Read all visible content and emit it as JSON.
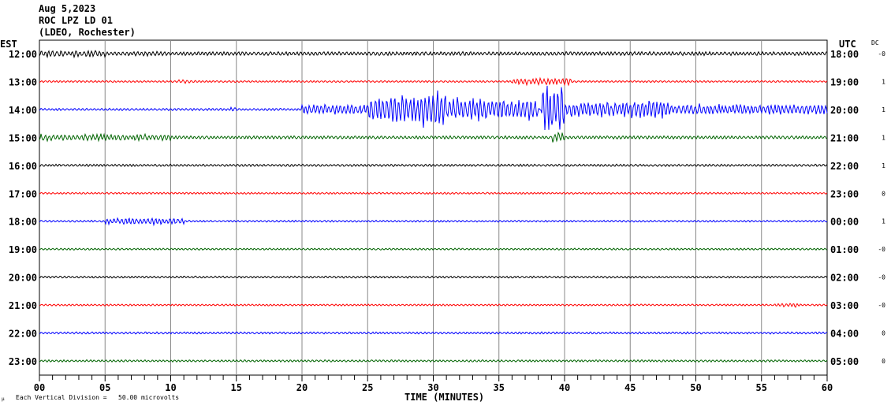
{
  "header": {
    "date": "Aug 5,2023",
    "station": "ROC LPZ LD 01",
    "network": "(LDEO, Rochester)"
  },
  "chart_data": {
    "type": "line",
    "title": "Aug 5,2023 ROC LPZ LD 01 (LDEO, Rochester)",
    "xlabel": "TIME (MINUTES)",
    "xlim": [
      0,
      60
    ],
    "x_ticks": [
      "00",
      "05",
      "10",
      "15",
      "20",
      "25",
      "30",
      "35",
      "40",
      "45",
      "50",
      "55",
      "60"
    ],
    "left_axis_title": "EST",
    "right_axis_title": "UTC",
    "dc_title": "DC",
    "scale_note": "Each Vertical Division =   50.00 microvolts",
    "corner_mark": "µ",
    "colors": [
      "#000000",
      "#ff0000",
      "#0000ff",
      "#006400"
    ],
    "rows": [
      {
        "est": "12:00",
        "utc": "18:00",
        "dc": "-0",
        "noise": 2.5,
        "events": [
          [
            0,
            5,
            5
          ],
          [
            7,
            9,
            4
          ]
        ]
      },
      {
        "est": "13:00",
        "utc": "19:00",
        "dc": "1",
        "noise": 1.2,
        "events": [
          [
            10.5,
            12,
            2.5
          ],
          [
            36,
            40.5,
            5
          ]
        ]
      },
      {
        "est": "14:00",
        "utc": "20:00",
        "dc": "1",
        "noise": 1.5,
        "events": [
          [
            14.5,
            15,
            4
          ],
          [
            20,
            25,
            8
          ],
          [
            25,
            29,
            20
          ],
          [
            29,
            31,
            28
          ],
          [
            31,
            38,
            16
          ],
          [
            38.2,
            40,
            38
          ],
          [
            40,
            45,
            12
          ],
          [
            45,
            48,
            14
          ],
          [
            48,
            60,
            8
          ]
        ]
      },
      {
        "est": "15:00",
        "utc": "21:00",
        "dc": "1",
        "noise": 2,
        "events": [
          [
            0,
            10,
            5
          ],
          [
            39,
            40,
            8
          ]
        ]
      },
      {
        "est": "16:00",
        "utc": "22:00",
        "dc": "1",
        "noise": 1.5,
        "events": []
      },
      {
        "est": "17:00",
        "utc": "23:00",
        "dc": "0",
        "noise": 1.2,
        "events": []
      },
      {
        "est": "18:00",
        "utc": "00:00",
        "dc": "1",
        "noise": 1.2,
        "events": [
          [
            5,
            11,
            5
          ]
        ]
      },
      {
        "est": "19:00",
        "utc": "01:00",
        "dc": "-0",
        "noise": 1.2,
        "events": []
      },
      {
        "est": "20:00",
        "utc": "02:00",
        "dc": "-0",
        "noise": 1.3,
        "events": []
      },
      {
        "est": "21:00",
        "utc": "03:00",
        "dc": "-0",
        "noise": 1.2,
        "events": [
          [
            56,
            58,
            3
          ]
        ]
      },
      {
        "est": "22:00",
        "utc": "04:00",
        "dc": "0",
        "noise": 1.4,
        "events": []
      },
      {
        "est": "23:00",
        "utc": "05:00",
        "dc": "0",
        "noise": 1.4,
        "events": []
      }
    ]
  }
}
